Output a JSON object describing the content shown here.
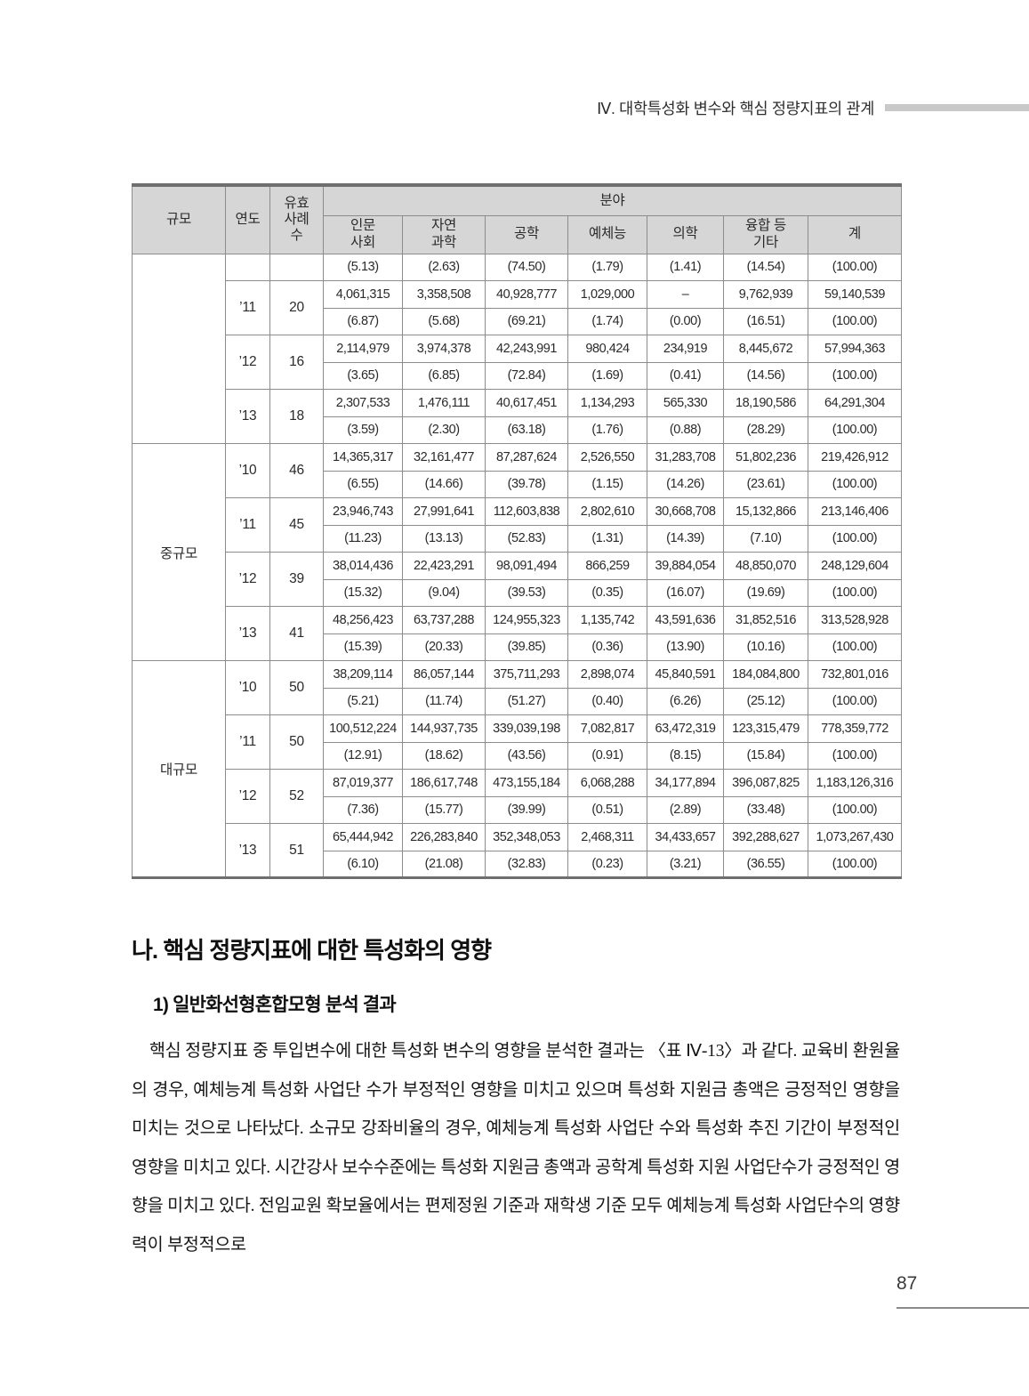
{
  "page": {
    "running_header": "Ⅳ. 대학특성화 변수와 핵심 정량지표의 관계",
    "page_number": "87"
  },
  "table": {
    "headers": {
      "scale": "규모",
      "year": "연도",
      "valid_cases": "유효\n사례\n수",
      "field_group": "분야",
      "fields": [
        "인문\n사회",
        "자연\n과학",
        "공학",
        "예체능",
        "의학",
        "융합 등\n기타",
        "계"
      ]
    },
    "sections": [
      {
        "scale": "",
        "rows": [
          {
            "year": "",
            "cases": "",
            "values": null,
            "pcts": [
              "(5.13)",
              "(2.63)",
              "(74.50)",
              "(1.79)",
              "(1.41)",
              "(14.54)",
              "(100.00)"
            ]
          },
          {
            "year": "’11",
            "cases": "20",
            "values": [
              "4,061,315",
              "3,358,508",
              "40,928,777",
              "1,029,000",
              "–",
              "9,762,939",
              "59,140,539"
            ],
            "pcts": [
              "(6.87)",
              "(5.68)",
              "(69.21)",
              "(1.74)",
              "(0.00)",
              "(16.51)",
              "(100.00)"
            ]
          },
          {
            "year": "’12",
            "cases": "16",
            "values": [
              "2,114,979",
              "3,974,378",
              "42,243,991",
              "980,424",
              "234,919",
              "8,445,672",
              "57,994,363"
            ],
            "pcts": [
              "(3.65)",
              "(6.85)",
              "(72.84)",
              "(1.69)",
              "(0.41)",
              "(14.56)",
              "(100.00)"
            ]
          },
          {
            "year": "’13",
            "cases": "18",
            "values": [
              "2,307,533",
              "1,476,111",
              "40,617,451",
              "1,134,293",
              "565,330",
              "18,190,586",
              "64,291,304"
            ],
            "pcts": [
              "(3.59)",
              "(2.30)",
              "(63.18)",
              "(1.76)",
              "(0.88)",
              "(28.29)",
              "(100.00)"
            ]
          }
        ]
      },
      {
        "scale": "중규모",
        "rows": [
          {
            "year": "’10",
            "cases": "46",
            "values": [
              "14,365,317",
              "32,161,477",
              "87,287,624",
              "2,526,550",
              "31,283,708",
              "51,802,236",
              "219,426,912"
            ],
            "pcts": [
              "(6.55)",
              "(14.66)",
              "(39.78)",
              "(1.15)",
              "(14.26)",
              "(23.61)",
              "(100.00)"
            ]
          },
          {
            "year": "’11",
            "cases": "45",
            "values": [
              "23,946,743",
              "27,991,641",
              "112,603,838",
              "2,802,610",
              "30,668,708",
              "15,132,866",
              "213,146,406"
            ],
            "pcts": [
              "(11.23)",
              "(13.13)",
              "(52.83)",
              "(1.31)",
              "(14.39)",
              "(7.10)",
              "(100.00)"
            ]
          },
          {
            "year": "’12",
            "cases": "39",
            "values": [
              "38,014,436",
              "22,423,291",
              "98,091,494",
              "866,259",
              "39,884,054",
              "48,850,070",
              "248,129,604"
            ],
            "pcts": [
              "(15.32)",
              "(9.04)",
              "(39.53)",
              "(0.35)",
              "(16.07)",
              "(19.69)",
              "(100.00)"
            ]
          },
          {
            "year": "’13",
            "cases": "41",
            "values": [
              "48,256,423",
              "63,737,288",
              "124,955,323",
              "1,135,742",
              "43,591,636",
              "31,852,516",
              "313,528,928"
            ],
            "pcts": [
              "(15.39)",
              "(20.33)",
              "(39.85)",
              "(0.36)",
              "(13.90)",
              "(10.16)",
              "(100.00)"
            ]
          }
        ]
      },
      {
        "scale": "대규모",
        "rows": [
          {
            "year": "’10",
            "cases": "50",
            "values": [
              "38,209,114",
              "86,057,144",
              "375,711,293",
              "2,898,074",
              "45,840,591",
              "184,084,800",
              "732,801,016"
            ],
            "pcts": [
              "(5.21)",
              "(11.74)",
              "(51.27)",
              "(0.40)",
              "(6.26)",
              "(25.12)",
              "(100.00)"
            ]
          },
          {
            "year": "’11",
            "cases": "50",
            "values": [
              "100,512,224",
              "144,937,735",
              "339,039,198",
              "7,082,817",
              "63,472,319",
              "123,315,479",
              "778,359,772"
            ],
            "pcts": [
              "(12.91)",
              "(18.62)",
              "(43.56)",
              "(0.91)",
              "(8.15)",
              "(15.84)",
              "(100.00)"
            ]
          },
          {
            "year": "’12",
            "cases": "52",
            "values": [
              "87,019,377",
              "186,617,748",
              "473,155,184",
              "6,068,288",
              "34,177,894",
              "396,087,825",
              "1,183,126,316"
            ],
            "pcts": [
              "(7.36)",
              "(15.77)",
              "(39.99)",
              "(0.51)",
              "(2.89)",
              "(33.48)",
              "(100.00)"
            ]
          },
          {
            "year": "’13",
            "cases": "51",
            "values": [
              "65,444,942",
              "226,283,840",
              "352,348,053",
              "2,468,311",
              "34,433,657",
              "392,288,627",
              "1,073,267,430"
            ],
            "pcts": [
              "(6.10)",
              "(21.08)",
              "(32.83)",
              "(0.23)",
              "(3.21)",
              "(36.55)",
              "(100.00)"
            ]
          }
        ]
      }
    ]
  },
  "body": {
    "section_heading": "나. 핵심 정량지표에 대한 특성화의 영향",
    "subsection_heading": "1) 일반화선형혼합모형 분석 결과",
    "paragraph": "핵심 정량지표 중 투입변수에 대한 특성화 변수의 영향을 분석한 결과는 〈표 Ⅳ-13〉과 같다. 교육비 환원율의 경우, 예체능계 특성화 사업단 수가 부정적인 영향을 미치고 있으며 특성화 지원금 총액은 긍정적인 영향을 미치는 것으로 나타났다. 소규모 강좌비율의 경우, 예체능계 특성화 사업단 수와 특성화 추진 기간이 부정적인 영향을 미치고 있다. 시간강사 보수수준에는 특성화 지원금 총액과 공학계 특성화 지원 사업단수가 긍정적인 영향을 미치고 있다. 전임교원 확보율에서는 편제정원 기준과 재학생 기준 모두 예체능계 특성화 사업단수의 영향력이 부정적으로"
  },
  "colors": {
    "table_header_bg": "#d6d6d6",
    "table_inner_border": "#8c8c8c",
    "table_frame_border": "#6f6f6f",
    "header_accent_bar": "#c9c9c9"
  }
}
